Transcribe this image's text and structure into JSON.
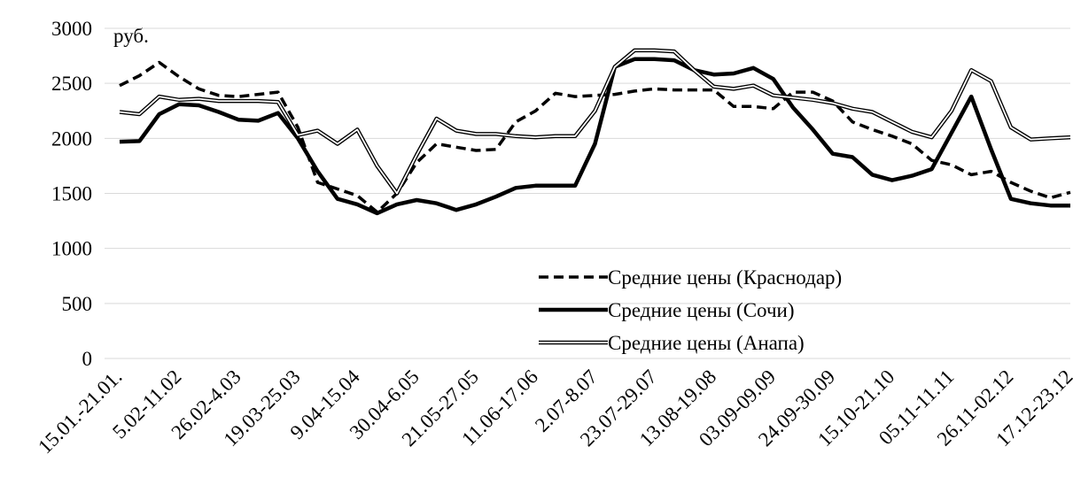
{
  "chart_data": {
    "type": "line",
    "annotation": "руб.",
    "categories": [
      "15.01.-21.01.",
      null,
      null,
      "5.02-11.02",
      null,
      null,
      "26.02-4.03",
      null,
      null,
      "19.03-25.03",
      null,
      null,
      "9.04-15.04",
      null,
      null,
      "30.04-6.05",
      null,
      null,
      "21.05-27.05",
      null,
      null,
      "11.06-17.06",
      null,
      null,
      "2.07-8.07",
      null,
      null,
      "23.07-29.07",
      null,
      null,
      "13.08-19.08",
      null,
      null,
      "03.09-09.09",
      null,
      null,
      "24.09-30.09",
      null,
      null,
      "15.10-21.10",
      null,
      null,
      "05.11-11.11",
      null,
      null,
      "26.11-02.12",
      null,
      null,
      "17.12-23.12"
    ],
    "series": [
      {
        "name": "Средние цены (Краснодар)",
        "color": "#000000",
        "style": "dashed",
        "values": [
          2480,
          2570,
          2690,
          2560,
          2450,
          2390,
          2380,
          2400,
          2420,
          2100,
          1600,
          1540,
          1480,
          1330,
          1500,
          1780,
          1950,
          1920,
          1890,
          1900,
          2150,
          2250,
          2410,
          2380,
          2390,
          2400,
          2430,
          2450,
          2440,
          2440,
          2440,
          2290,
          2290,
          2270,
          2420,
          2420,
          2340,
          2150,
          2080,
          2020,
          1950,
          1800,
          1760,
          1670,
          1700,
          1600,
          1520,
          1460,
          1510
        ]
      },
      {
        "name": "Средние цены (Сочи)",
        "color": "#000000",
        "style": "thick",
        "values": [
          1970,
          1975,
          2220,
          2310,
          2300,
          2240,
          2170,
          2160,
          2230,
          2000,
          1700,
          1450,
          1400,
          1320,
          1400,
          1440,
          1410,
          1350,
          1400,
          1470,
          1550,
          1570,
          1570,
          1570,
          1950,
          2650,
          2720,
          2720,
          2710,
          2620,
          2580,
          2590,
          2640,
          2540,
          2280,
          2080,
          1860,
          1830,
          1670,
          1620,
          1660,
          1720,
          2050,
          2380,
          1900,
          1450,
          1410,
          1390,
          1390
        ]
      },
      {
        "name": "Средние цены (Анапа)",
        "color": "#000000",
        "style": "double",
        "values": [
          2240,
          2220,
          2380,
          2350,
          2360,
          2340,
          2340,
          2340,
          2330,
          2030,
          2070,
          1950,
          2080,
          1750,
          1500,
          1850,
          2180,
          2070,
          2040,
          2040,
          2020,
          2010,
          2020,
          2020,
          2250,
          2650,
          2800,
          2800,
          2790,
          2620,
          2470,
          2450,
          2480,
          2390,
          2370,
          2350,
          2320,
          2270,
          2240,
          2150,
          2060,
          2010,
          2250,
          2620,
          2520,
          2100,
          1990,
          2000,
          2010
        ]
      }
    ],
    "ylim": [
      0,
      3000
    ],
    "yticks": [
      0,
      500,
      1000,
      1500,
      2000,
      2500,
      3000
    ],
    "grid": true
  }
}
